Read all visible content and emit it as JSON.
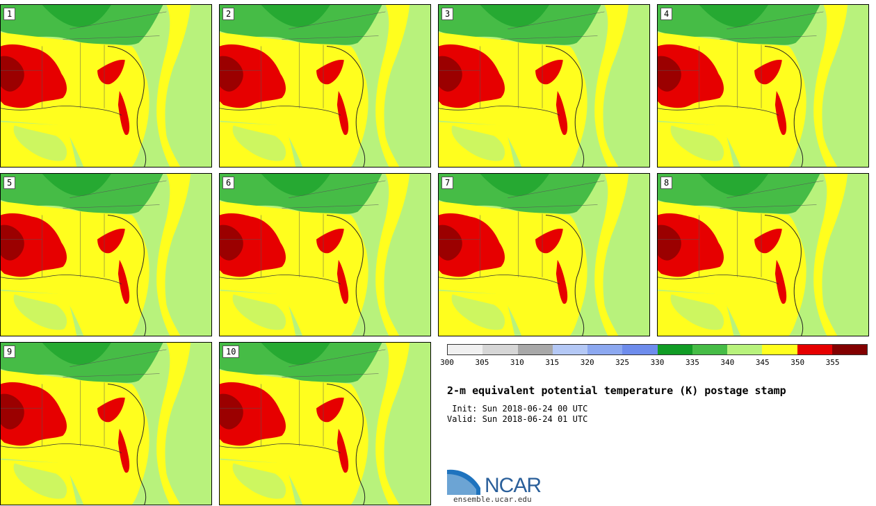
{
  "stamps": [
    {
      "label": "1"
    },
    {
      "label": "2"
    },
    {
      "label": "3"
    },
    {
      "label": "4"
    },
    {
      "label": "5"
    },
    {
      "label": "6"
    },
    {
      "label": "7"
    },
    {
      "label": "8"
    },
    {
      "label": "9"
    },
    {
      "label": "10"
    }
  ],
  "colorbar": {
    "ticks": [
      "300",
      "305",
      "310",
      "315",
      "320",
      "325",
      "330",
      "335",
      "340",
      "345",
      "350",
      "355"
    ],
    "colors": [
      "#f0f0f0",
      "#d6d6d6",
      "#a8a8a8",
      "#b4c8f5",
      "#8ca8f0",
      "#6e8cec",
      "#119c25",
      "#46bc46",
      "#b8f27c",
      "#fffe1e",
      "#e60000",
      "#820000"
    ]
  },
  "title": "2-m equivalent potential temperature (K) postage stamp",
  "init_text": " Init: Sun 2018-06-24 00 UTC",
  "valid_text": "Valid: Sun 2018-06-24 01 UTC",
  "logo": {
    "text": "NCAR",
    "url": "ensemble.ucar.edu"
  }
}
